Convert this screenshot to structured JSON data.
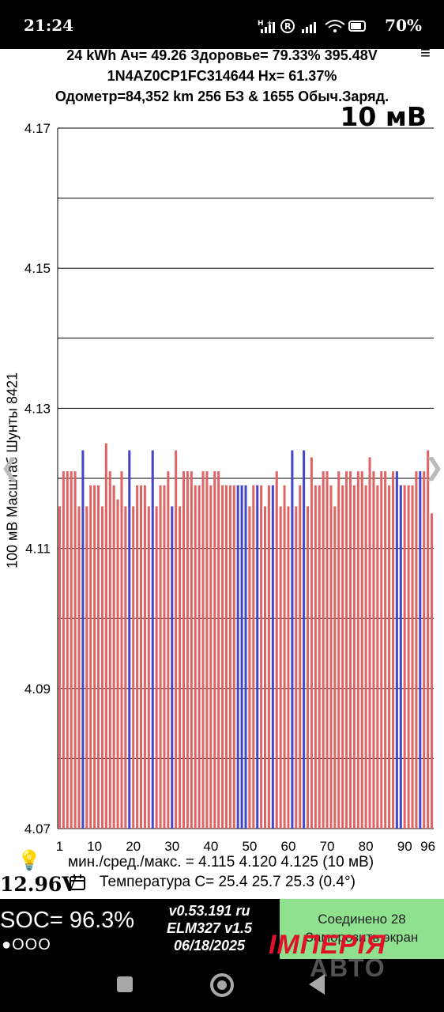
{
  "status_bar": {
    "time": "21:24",
    "icons": "H+ R",
    "battery": "70%"
  },
  "header": {
    "line1": "24 kWh  Ач= 49.26 Здоровье= 79.33% 395.48V",
    "line2": "1N4AZ0CP1FC314644   Hx= 61.37%",
    "line3": "Одометр=84,352 km 256 БЗ & 1655 Обыч.Заряд.",
    "scale": "10 мВ"
  },
  "chart_data": {
    "type": "bar",
    "ylabel": "100 мВ Масштаб   Шунты 8421",
    "ylim": [
      4.07,
      4.17
    ],
    "yticks": [
      "4.17",
      "4.15",
      "4.13",
      "4.11",
      "4.09",
      "4.07"
    ],
    "xticks": [
      "1",
      "10",
      "20",
      "30",
      "40",
      "50",
      "60",
      "70",
      "80",
      "90",
      "96"
    ],
    "grid": true,
    "colors": {
      "normal": "#e06464",
      "shunt": "#4646c8"
    },
    "values": [
      4.116,
      4.121,
      4.121,
      4.121,
      4.121,
      4.116,
      4.124,
      4.116,
      4.119,
      4.119,
      4.119,
      4.116,
      4.125,
      4.121,
      4.119,
      4.117,
      4.121,
      4.116,
      4.124,
      4.116,
      4.119,
      4.119,
      4.119,
      4.116,
      4.124,
      4.116,
      4.119,
      4.119,
      4.121,
      4.116,
      4.124,
      4.116,
      4.121,
      4.121,
      4.121,
      4.119,
      4.119,
      4.121,
      4.121,
      4.119,
      4.121,
      4.121,
      4.119,
      4.119,
      4.119,
      4.119,
      4.119,
      4.119,
      4.119,
      4.116,
      4.119,
      4.119,
      4.119,
      4.116,
      4.119,
      4.119,
      4.121,
      4.116,
      4.119,
      4.116,
      4.124,
      4.116,
      4.119,
      4.124,
      4.116,
      4.123,
      4.119,
      4.119,
      4.121,
      4.121,
      4.119,
      4.116,
      4.121,
      4.119,
      4.121,
      4.121,
      4.119,
      4.121,
      4.121,
      4.119,
      4.123,
      4.121,
      4.119,
      4.121,
      4.121,
      4.119,
      4.121,
      4.121,
      4.119,
      4.119,
      4.119,
      4.119,
      4.121,
      4.121,
      4.121,
      4.124,
      4.115
    ],
    "shunts": [
      7,
      19,
      25,
      30,
      47,
      48,
      49,
      52,
      56,
      61,
      64,
      88,
      89,
      94
    ]
  },
  "footer": {
    "minmax": "мин./сред./макс. = 4.115 4.120 4.125  (10 мВ)",
    "aux_voltage": "12.96V",
    "temperature": "Температура С= 25.4  25.7  25.3  (0.4°)"
  },
  "bottom": {
    "soc": "SOC= 96.3%",
    "dots": "●OOO",
    "version": "v0.53.191 ru",
    "adapter": "ELM327 v1.5",
    "date": "06/18/2025",
    "connected": "Соединено 28",
    "freeze": "Заморозить экран",
    "logo": "ІМПЕРІЯ",
    "logo_sub": "АВТО"
  },
  "icons": {
    "menu": "hamburger-icon",
    "bulb": "lightbulb-icon",
    "calendar": "calendar-icon",
    "left": "chevron-left-icon",
    "right": "chevron-right-icon"
  }
}
